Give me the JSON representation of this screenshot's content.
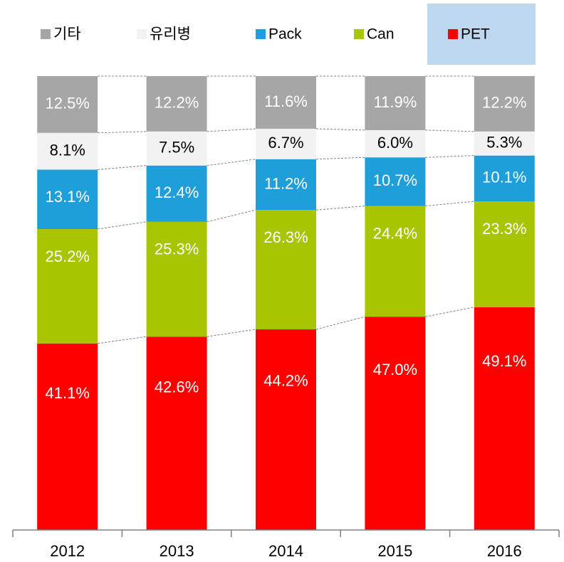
{
  "chart_data": {
    "type": "stacked_bar",
    "categories": [
      "2012",
      "2013",
      "2014",
      "2015",
      "2016"
    ],
    "series": [
      {
        "name": "PET",
        "color": "#ff0000",
        "label_color": "#ffffff",
        "values": [
          41.1,
          42.6,
          44.2,
          47.0,
          49.1
        ],
        "value_labels": [
          "41.1%",
          "42.6%",
          "44.2%",
          "47.0%",
          "49.1%"
        ]
      },
      {
        "name": "Can",
        "color": "#a9c400",
        "label_color": "#ffffff",
        "values": [
          25.2,
          25.3,
          26.3,
          24.4,
          23.3
        ],
        "value_labels": [
          "25.2%",
          "25.3%",
          "26.3%",
          "24.4%",
          "23.3%"
        ]
      },
      {
        "name": "Pack",
        "color": "#1e9fd9",
        "label_color": "#ffffff",
        "values": [
          13.1,
          12.4,
          11.2,
          10.7,
          10.1
        ],
        "value_labels": [
          "13.1%",
          "12.4%",
          "11.2%",
          "10.7%",
          "10.1%"
        ]
      },
      {
        "name": "유리병",
        "color": "#f2f2f2",
        "label_color": "#000000",
        "values": [
          8.1,
          7.5,
          6.7,
          6.0,
          5.3
        ],
        "value_labels": [
          "8.1%",
          "7.5%",
          "6.7%",
          "6.0%",
          "5.3%"
        ]
      },
      {
        "name": "기타",
        "color": "#a6a6a6",
        "label_color": "#ffffff",
        "values": [
          12.5,
          12.2,
          11.6,
          11.9,
          12.2
        ],
        "value_labels": [
          "12.5%",
          "12.2%",
          "11.6%",
          "11.9%",
          "12.2%"
        ]
      }
    ]
  }
}
